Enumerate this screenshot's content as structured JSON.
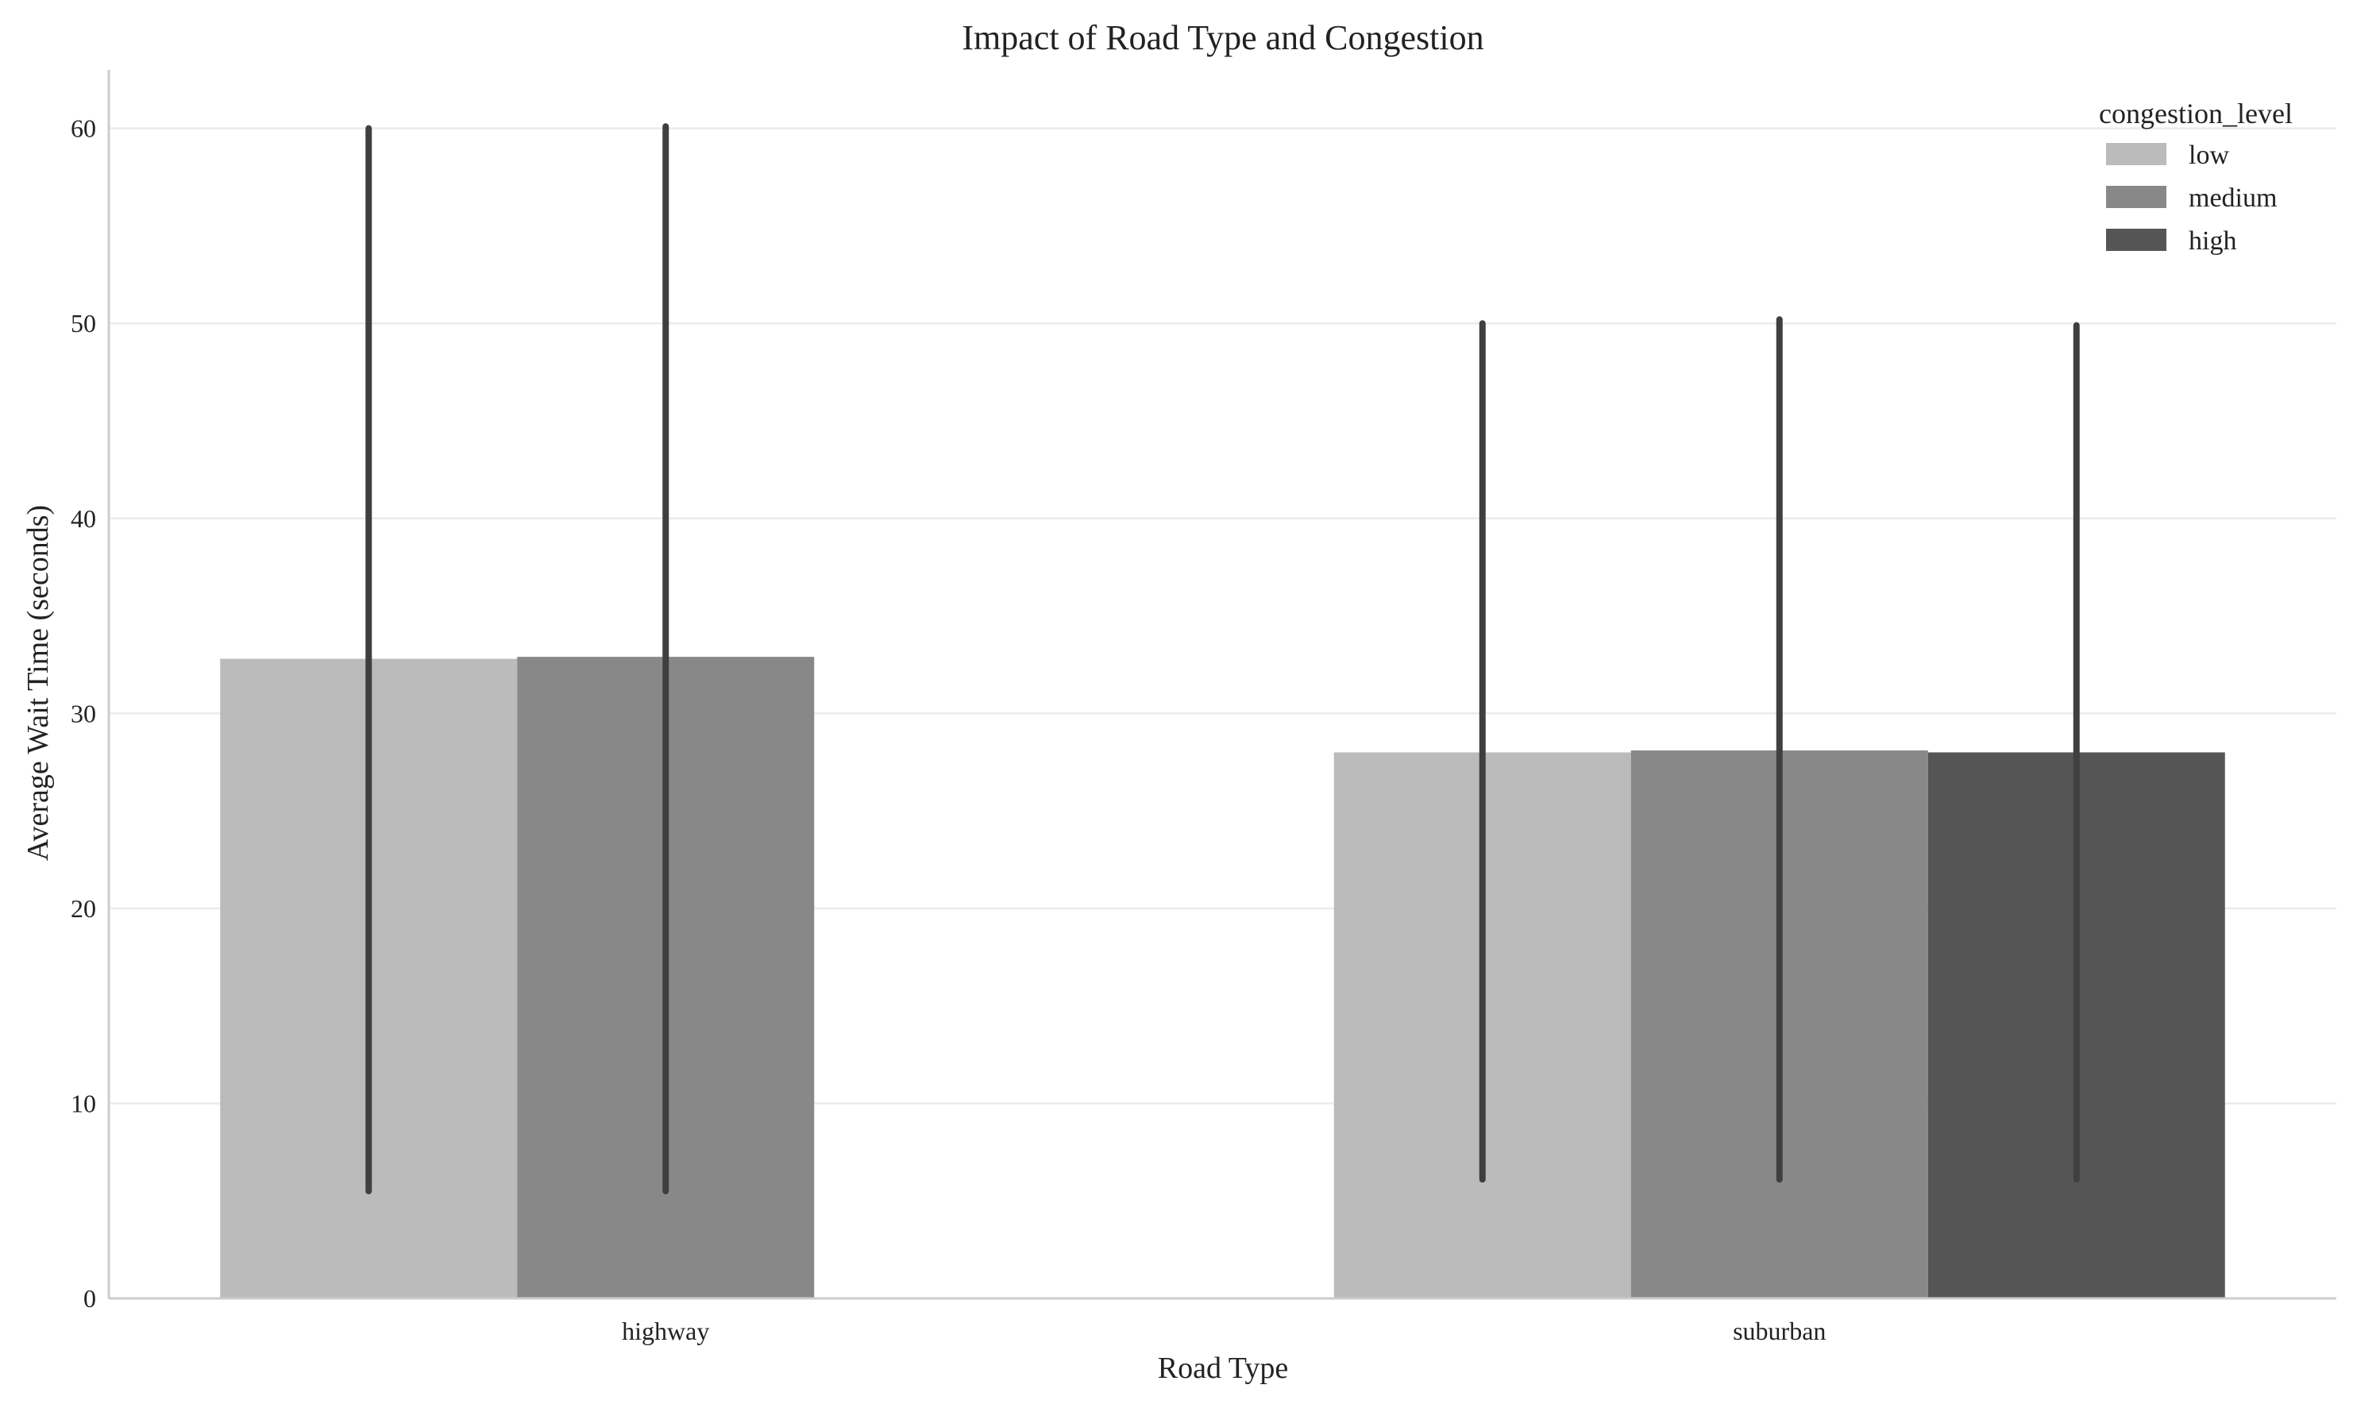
{
  "chart_data": {
    "type": "bar",
    "title": "Impact of Road Type and Congestion",
    "xlabel": "Road Type",
    "ylabel": "Average Wait Time (seconds)",
    "categories": [
      "highway",
      "suburban"
    ],
    "ylim": [
      0,
      63
    ],
    "yticks": [
      0,
      10,
      20,
      30,
      40,
      50,
      60
    ],
    "grid": "horizontal",
    "legend": {
      "title": "congestion_level",
      "placement": "top-right"
    },
    "series": [
      {
        "name": "low",
        "color": "#bbbbbb",
        "values": [
          32.8,
          28.0
        ],
        "err_low": [
          5.5,
          6.1
        ],
        "err_high": [
          60.0,
          50.0
        ]
      },
      {
        "name": "medium",
        "color": "#888888",
        "values": [
          32.9,
          28.1
        ],
        "err_low": [
          5.5,
          6.1
        ],
        "err_high": [
          60.1,
          50.2
        ]
      },
      {
        "name": "high",
        "color": "#555555",
        "values": [
          null,
          28.0
        ],
        "err_low": [
          null,
          6.1
        ],
        "err_high": [
          null,
          49.9
        ]
      }
    ],
    "error_bar_color": "#3f3f3f"
  }
}
